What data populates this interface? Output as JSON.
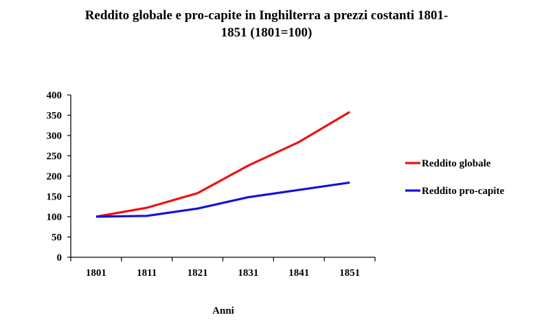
{
  "chart_data": {
    "type": "line",
    "title_lines": [
      "Reddito globale e pro-capite in Inghilterra a prezzi costanti 1801-",
      "1851 (1801=100)"
    ],
    "xlabel": "Anni",
    "ylabel": "",
    "categories": [
      "1801",
      "1811",
      "1821",
      "1831",
      "1841",
      "1851"
    ],
    "ylim": [
      0,
      400
    ],
    "yticks": [
      0,
      50,
      100,
      150,
      200,
      250,
      300,
      350,
      400
    ],
    "series": [
      {
        "name": "Reddito globale",
        "color": "#ee1111",
        "values": [
          100,
          122,
          158,
          226,
          284,
          358
        ]
      },
      {
        "name": "Reddito pro-capite",
        "color": "#1111dd",
        "values": [
          100,
          102,
          120,
          148,
          166,
          184
        ]
      }
    ],
    "grid": false,
    "legend_position": "right"
  }
}
